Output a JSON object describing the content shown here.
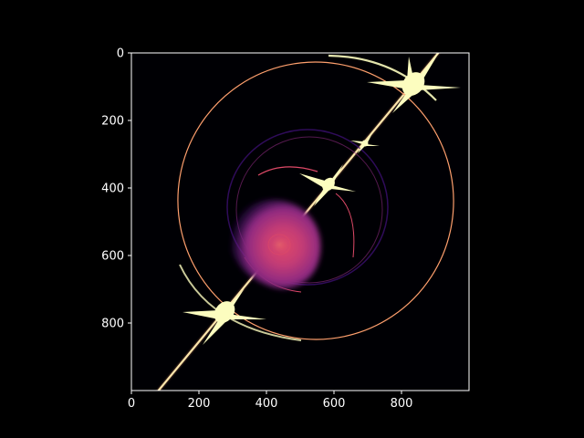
{
  "chart_data": {
    "type": "heatmap",
    "colormap": "magma",
    "background": "#000000",
    "x_ticks": [
      0,
      200,
      400,
      600,
      800
    ],
    "y_ticks": [
      0,
      200,
      400,
      600,
      800
    ],
    "xlim": [
      0,
      1000
    ],
    "ylim": [
      1000,
      0
    ],
    "y_inverted": true,
    "grid": false,
    "colors": {
      "bright": "#fcfdbf",
      "orange": "#fe9f6d",
      "pink": "#de4968",
      "magenta": "#8c2981",
      "purple": "#3b0f70",
      "dark": "#000004"
    }
  }
}
